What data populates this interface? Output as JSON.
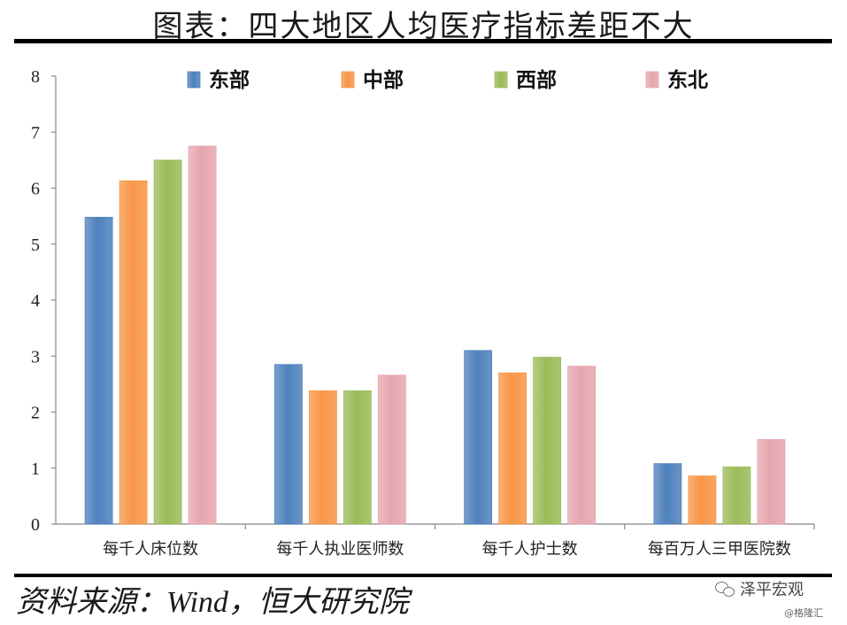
{
  "title": "图表：四大地区人均医疗指标差距不大",
  "source": "资料来源：Wind，恒大研究院",
  "brand": "泽平宏观",
  "watermark": "@格隆汇",
  "chart_data": {
    "type": "bar",
    "categories": [
      "每千人床位数",
      "每千人执业医师数",
      "每千人护士数",
      "每百万人三甲医院数"
    ],
    "series": [
      {
        "name": "东部",
        "color": "#4f81bd",
        "values": [
          5.48,
          2.85,
          3.1,
          1.08
        ]
      },
      {
        "name": "中部",
        "color": "#f79646",
        "values": [
          6.13,
          2.38,
          2.7,
          0.86
        ]
      },
      {
        "name": "西部",
        "color": "#9bbb59",
        "values": [
          6.5,
          2.38,
          2.98,
          1.02
        ]
      },
      {
        "name": "东北",
        "color": "#e6a6ae",
        "values": [
          6.75,
          2.66,
          2.82,
          1.51
        ]
      }
    ],
    "ylim": [
      0,
      8
    ],
    "yticks": [
      "0",
      "1",
      "2",
      "3",
      "4",
      "5",
      "6",
      "7",
      "8"
    ],
    "legend": "top",
    "grid": false
  }
}
